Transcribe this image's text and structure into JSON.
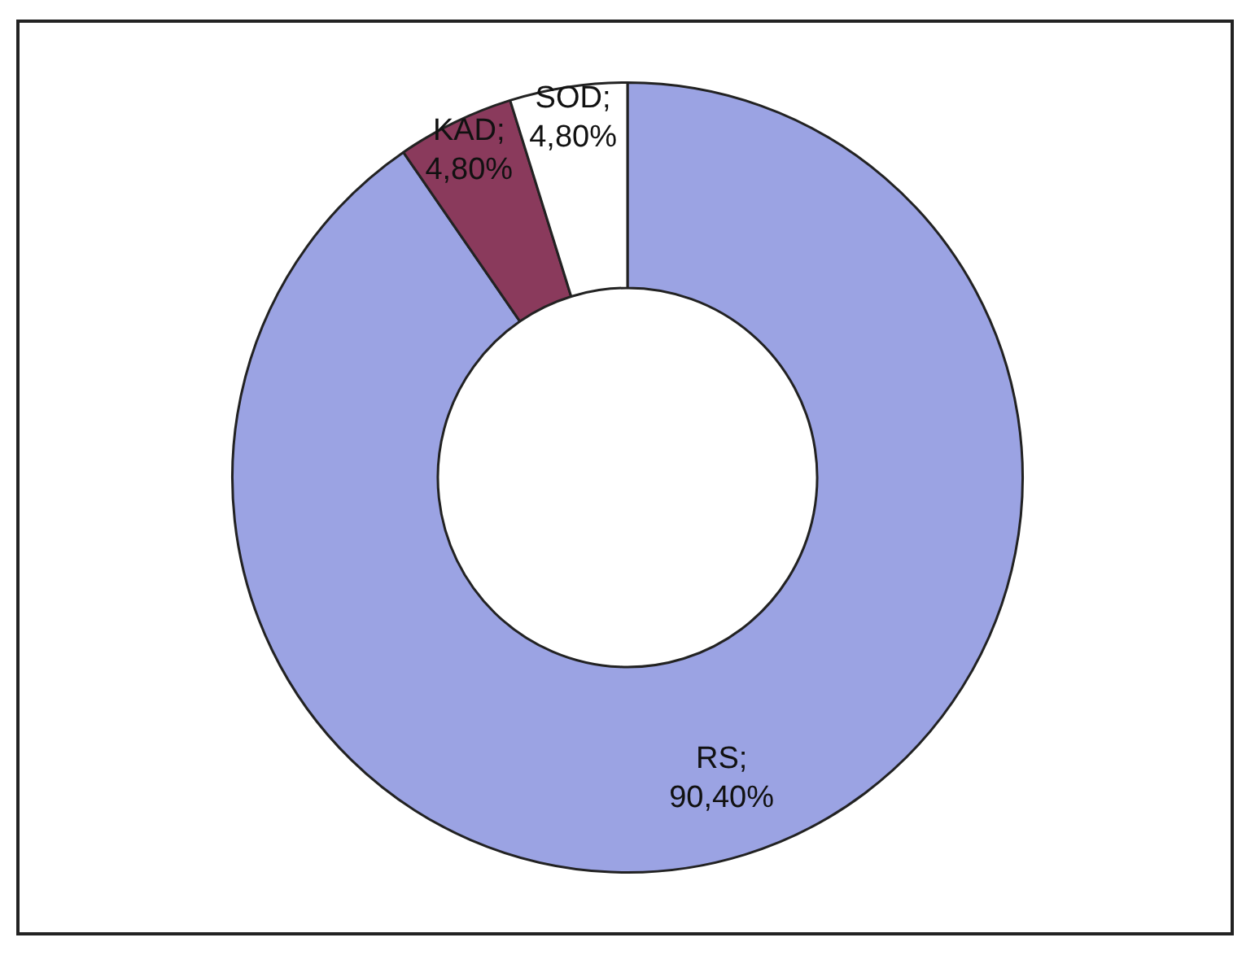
{
  "chart_data": {
    "type": "donut",
    "categories": [
      "RS",
      "KAD",
      "SOD"
    ],
    "values": [
      90.4,
      4.8,
      4.8
    ],
    "colors": [
      "#9ba3e3",
      "#8a3a5c",
      "#ffffff"
    ],
    "value_labels": [
      "; 90,40%",
      "; 4,80%",
      "; 4,80%"
    ],
    "legend": false
  }
}
